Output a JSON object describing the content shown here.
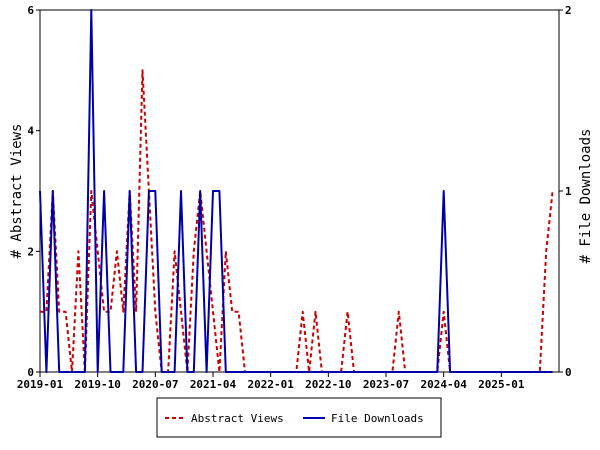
{
  "chart_data": {
    "type": "line",
    "xlabel": "",
    "ylabel": "# Abstract Views",
    "y2label": "# File Downloads",
    "x_tick_labels": [
      "2019-01",
      "2019-10",
      "2020-07",
      "2021-04",
      "2022-01",
      "2022-10",
      "2023-07",
      "2024-04",
      "2025-01"
    ],
    "x_range": [
      "2019-01",
      "2025-10"
    ],
    "ylim": [
      0,
      6
    ],
    "y_ticks": [
      "0",
      "2",
      "4",
      "6"
    ],
    "y2lim": [
      0,
      2
    ],
    "y2_ticks": [
      "0",
      "1",
      "2"
    ],
    "legend_position": "bottom",
    "series": [
      {
        "name": "Abstract Views",
        "axis": "left",
        "color": "#cc0000",
        "style": "dashed",
        "points": [
          [
            "2019-01",
            1
          ],
          [
            "2019-02",
            1
          ],
          [
            "2019-03",
            3
          ],
          [
            "2019-04",
            1
          ],
          [
            "2019-05",
            1
          ],
          [
            "2019-06",
            0
          ],
          [
            "2019-07",
            2
          ],
          [
            "2019-08",
            0
          ],
          [
            "2019-09",
            3
          ],
          [
            "2019-10",
            2
          ],
          [
            "2019-11",
            1
          ],
          [
            "2019-12",
            1
          ],
          [
            "2020-01",
            2
          ],
          [
            "2020-02",
            1
          ],
          [
            "2020-03",
            3
          ],
          [
            "2020-04",
            1
          ],
          [
            "2020-05",
            5
          ],
          [
            "2020-06",
            3
          ],
          [
            "2020-07",
            1
          ],
          [
            "2020-08",
            0
          ],
          [
            "2020-09",
            0
          ],
          [
            "2020-10",
            2
          ],
          [
            "2020-11",
            1
          ],
          [
            "2020-12",
            0
          ],
          [
            "2021-01",
            2
          ],
          [
            "2021-02",
            3
          ],
          [
            "2021-03",
            2
          ],
          [
            "2021-04",
            1
          ],
          [
            "2021-05",
            0
          ],
          [
            "2021-06",
            2
          ],
          [
            "2021-07",
            1
          ],
          [
            "2021-08",
            1
          ],
          [
            "2021-09",
            0
          ],
          [
            "2021-10",
            0
          ],
          [
            "2021-11",
            0
          ],
          [
            "2021-12",
            0
          ],
          [
            "2022-01",
            0
          ],
          [
            "2022-02",
            0
          ],
          [
            "2022-03",
            0
          ],
          [
            "2022-04",
            0
          ],
          [
            "2022-05",
            0
          ],
          [
            "2022-06",
            1
          ],
          [
            "2022-07",
            0
          ],
          [
            "2022-08",
            1
          ],
          [
            "2022-09",
            0
          ],
          [
            "2022-10",
            0
          ],
          [
            "2022-11",
            0
          ],
          [
            "2022-12",
            0
          ],
          [
            "2023-01",
            1
          ],
          [
            "2023-02",
            0
          ],
          [
            "2023-03",
            0
          ],
          [
            "2023-04",
            0
          ],
          [
            "2023-05",
            0
          ],
          [
            "2023-06",
            0
          ],
          [
            "2023-07",
            0
          ],
          [
            "2023-08",
            0
          ],
          [
            "2023-09",
            1
          ],
          [
            "2023-10",
            0
          ],
          [
            "2023-11",
            0
          ],
          [
            "2023-12",
            0
          ],
          [
            "2024-01",
            0
          ],
          [
            "2024-02",
            0
          ],
          [
            "2024-03",
            0
          ],
          [
            "2024-04",
            1
          ],
          [
            "2024-05",
            0
          ],
          [
            "2024-06",
            0
          ],
          [
            "2024-07",
            0
          ],
          [
            "2024-08",
            0
          ],
          [
            "2024-09",
            0
          ],
          [
            "2024-10",
            0
          ],
          [
            "2024-11",
            0
          ],
          [
            "2024-12",
            0
          ],
          [
            "2025-01",
            0
          ],
          [
            "2025-02",
            0
          ],
          [
            "2025-03",
            0
          ],
          [
            "2025-04",
            0
          ],
          [
            "2025-05",
            0
          ],
          [
            "2025-06",
            0
          ],
          [
            "2025-07",
            0
          ],
          [
            "2025-08",
            2
          ],
          [
            "2025-09",
            3
          ]
        ]
      },
      {
        "name": "File Downloads",
        "axis": "right",
        "color": "#0000aa",
        "style": "solid",
        "points": [
          [
            "2019-01",
            1
          ],
          [
            "2019-02",
            0
          ],
          [
            "2019-03",
            1
          ],
          [
            "2019-04",
            0
          ],
          [
            "2019-05",
            0
          ],
          [
            "2019-06",
            0
          ],
          [
            "2019-07",
            0
          ],
          [
            "2019-08",
            0
          ],
          [
            "2019-09",
            2
          ],
          [
            "2019-10",
            0
          ],
          [
            "2019-11",
            1
          ],
          [
            "2019-12",
            0
          ],
          [
            "2020-01",
            0
          ],
          [
            "2020-02",
            0
          ],
          [
            "2020-03",
            1
          ],
          [
            "2020-04",
            0
          ],
          [
            "2020-05",
            0
          ],
          [
            "2020-06",
            1
          ],
          [
            "2020-07",
            1
          ],
          [
            "2020-08",
            0
          ],
          [
            "2020-09",
            0
          ],
          [
            "2020-10",
            0
          ],
          [
            "2020-11",
            1
          ],
          [
            "2020-12",
            0
          ],
          [
            "2021-01",
            0
          ],
          [
            "2021-02",
            1
          ],
          [
            "2021-03",
            0
          ],
          [
            "2021-04",
            1
          ],
          [
            "2021-05",
            1
          ],
          [
            "2021-06",
            0
          ],
          [
            "2021-07",
            0
          ],
          [
            "2021-08",
            0
          ],
          [
            "2021-09",
            0
          ],
          [
            "2021-10",
            0
          ],
          [
            "2021-11",
            0
          ],
          [
            "2021-12",
            0
          ],
          [
            "2022-01",
            0
          ],
          [
            "2022-02",
            0
          ],
          [
            "2022-03",
            0
          ],
          [
            "2022-04",
            0
          ],
          [
            "2022-05",
            0
          ],
          [
            "2022-06",
            0
          ],
          [
            "2022-07",
            0
          ],
          [
            "2022-08",
            0
          ],
          [
            "2022-09",
            0
          ],
          [
            "2022-10",
            0
          ],
          [
            "2022-11",
            0
          ],
          [
            "2022-12",
            0
          ],
          [
            "2023-01",
            0
          ],
          [
            "2023-02",
            0
          ],
          [
            "2023-03",
            0
          ],
          [
            "2023-04",
            0
          ],
          [
            "2023-05",
            0
          ],
          [
            "2023-06",
            0
          ],
          [
            "2023-07",
            0
          ],
          [
            "2023-08",
            0
          ],
          [
            "2023-09",
            0
          ],
          [
            "2023-10",
            0
          ],
          [
            "2023-11",
            0
          ],
          [
            "2023-12",
            0
          ],
          [
            "2024-01",
            0
          ],
          [
            "2024-02",
            0
          ],
          [
            "2024-03",
            0
          ],
          [
            "2024-04",
            1
          ],
          [
            "2024-05",
            0
          ],
          [
            "2024-06",
            0
          ],
          [
            "2024-07",
            0
          ],
          [
            "2024-08",
            0
          ],
          [
            "2024-09",
            0
          ],
          [
            "2024-10",
            0
          ],
          [
            "2024-11",
            0
          ],
          [
            "2024-12",
            0
          ],
          [
            "2025-01",
            0
          ],
          [
            "2025-02",
            0
          ],
          [
            "2025-03",
            0
          ],
          [
            "2025-04",
            0
          ],
          [
            "2025-05",
            0
          ],
          [
            "2025-06",
            0
          ],
          [
            "2025-07",
            0
          ],
          [
            "2025-08",
            0
          ],
          [
            "2025-09",
            0
          ]
        ]
      }
    ]
  }
}
